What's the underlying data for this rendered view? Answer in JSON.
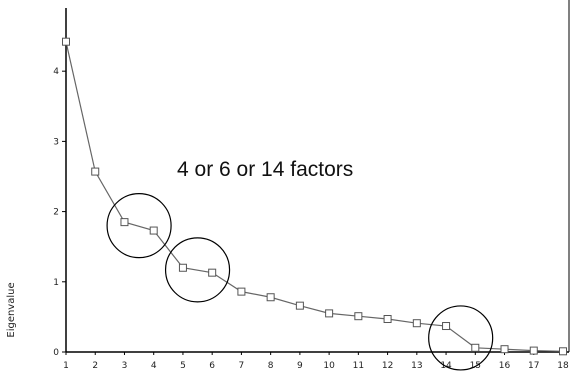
{
  "chart_data": {
    "type": "line",
    "title": "",
    "xlabel": "",
    "ylabel": "Eigenvalue",
    "x": [
      1,
      2,
      3,
      4,
      5,
      6,
      7,
      8,
      9,
      10,
      11,
      12,
      13,
      14,
      15,
      16,
      17,
      18
    ],
    "values": [
      4.42,
      2.57,
      1.85,
      1.73,
      1.2,
      1.13,
      0.86,
      0.78,
      0.66,
      0.55,
      0.51,
      0.47,
      0.41,
      0.37,
      0.06,
      0.04,
      0.02,
      0.01
    ],
    "xticks": [
      "1",
      "2",
      "3",
      "4",
      "5",
      "6",
      "7",
      "8",
      "9",
      "10",
      "11",
      "12",
      "13",
      "14",
      "15",
      "16",
      "17",
      "18"
    ],
    "yticks": [
      "0",
      "1",
      "2",
      "3",
      "4"
    ],
    "ylim": [
      0,
      4.9
    ],
    "grid": false,
    "annotation": "4 or 6 or 14 factors",
    "highlights": [
      {
        "x": 3.5,
        "y": 1.8
      },
      {
        "x": 5.5,
        "y": 1.17
      },
      {
        "x": 14.5,
        "y": 0.2
      }
    ],
    "colors": {
      "line": "#666666",
      "marker": "#555555",
      "axis": "#000000",
      "circle": "#000000"
    }
  }
}
